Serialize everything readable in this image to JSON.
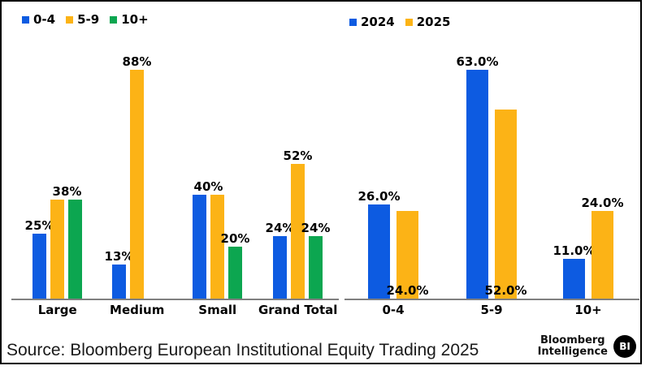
{
  "colors": {
    "blue": "#0d5be1",
    "orange": "#fcb316",
    "green": "#0ca650",
    "axis": "#7f7f7f",
    "text": "#000000"
  },
  "source": {
    "text": "Source: Bloomberg European Institutional Equity Trading 2025"
  },
  "branding": {
    "line1": "Bloomberg",
    "line2": "Intelligence",
    "badge": "BI"
  },
  "chart_data": [
    {
      "type": "bar",
      "title": "",
      "categories": [
        "Large",
        "Medium",
        "Small",
        "Grand Total"
      ],
      "series": [
        {
          "name": "0-4",
          "color_key": "blue",
          "values": [
            25,
            13,
            40,
            24
          ],
          "labels": [
            "25%",
            "13%",
            "40%",
            "24%"
          ]
        },
        {
          "name": "5-9",
          "color_key": "orange",
          "values": [
            38,
            88,
            40,
            52
          ],
          "labels": [
            "38%",
            "88%",
            null,
            "52%"
          ]
        },
        {
          "name": "10+",
          "color_key": "green",
          "values": [
            38,
            null,
            20,
            24
          ],
          "labels": [
            null,
            null,
            "20%",
            "24%"
          ]
        }
      ],
      "unit": "%",
      "ylim": [
        0,
        100
      ],
      "grid": false,
      "legend_position": "top-left"
    },
    {
      "type": "bar",
      "title": "",
      "categories": [
        "0-4",
        "5-9",
        "10+"
      ],
      "series": [
        {
          "name": "2024",
          "color_key": "blue",
          "values": [
            26,
            63,
            11
          ],
          "labels": [
            "26.0%",
            "63.0%",
            "11.0%"
          ],
          "label_pos": [
            "top",
            "top",
            "top"
          ]
        },
        {
          "name": "2025",
          "color_key": "orange",
          "values": [
            24,
            52,
            24
          ],
          "labels": [
            "24.0%",
            "52.0%",
            "24.0%"
          ],
          "label_pos": [
            "bottom",
            "bottom",
            "top"
          ]
        }
      ],
      "unit": "%",
      "ylim": [
        0,
        100
      ],
      "grid": false,
      "legend_position": "top-left"
    }
  ]
}
